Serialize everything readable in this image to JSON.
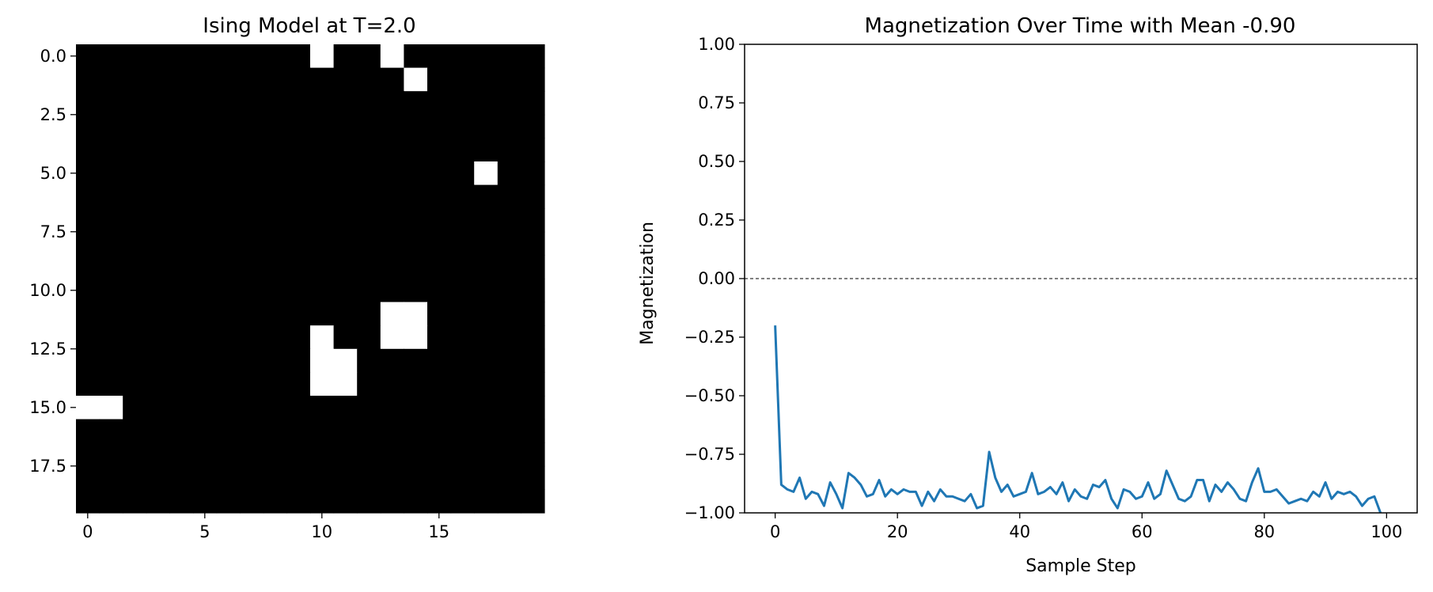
{
  "chart_data": [
    {
      "type": "heatmap",
      "title": "Ising Model at T=2.0",
      "grid_size": [
        20,
        20
      ],
      "colormap": "gray",
      "colors": {
        "spin_down": "#000000",
        "spin_up": "#ffffff"
      },
      "background_value": -1,
      "up_spins": [
        [
          0,
          10
        ],
        [
          0,
          13
        ],
        [
          1,
          14
        ],
        [
          5,
          17
        ],
        [
          11,
          13
        ],
        [
          11,
          14
        ],
        [
          12,
          10
        ],
        [
          12,
          13
        ],
        [
          12,
          14
        ],
        [
          13,
          10
        ],
        [
          13,
          11
        ],
        [
          14,
          10
        ],
        [
          14,
          11
        ],
        [
          15,
          0
        ],
        [
          15,
          1
        ]
      ],
      "xlim": [
        -0.5,
        19.5
      ],
      "ylim": [
        19.5,
        -0.5
      ],
      "x_ticks": [
        0,
        5,
        10,
        15
      ],
      "x_tick_labels": [
        "0",
        "5",
        "10",
        "15"
      ],
      "y_ticks": [
        0.0,
        2.5,
        5.0,
        7.5,
        10.0,
        12.5,
        15.0,
        17.5
      ],
      "y_tick_labels": [
        "0.0",
        "2.5",
        "5.0",
        "7.5",
        "10.0",
        "12.5",
        "15.0",
        "17.5"
      ]
    },
    {
      "type": "line",
      "title": "Magnetization Over Time with Mean -0.90",
      "xlabel": "Sample Step",
      "ylabel": "Magnetization",
      "xlim": [
        -5,
        105
      ],
      "ylim": [
        -1.0,
        1.0
      ],
      "x_ticks": [
        0,
        20,
        40,
        60,
        80,
        100
      ],
      "x_tick_labels": [
        "0",
        "20",
        "40",
        "60",
        "80",
        "100"
      ],
      "y_ticks": [
        1.0,
        0.75,
        0.5,
        0.25,
        0.0,
        -0.25,
        -0.5,
        -0.75,
        -1.0
      ],
      "y_tick_labels": [
        "1.00",
        "0.75",
        "0.50",
        "0.25",
        "0.00",
        "−0.25",
        "−0.50",
        "−0.75",
        "−1.00"
      ],
      "reference_line": {
        "y": 0.0,
        "style": "dashed",
        "color": "#000000"
      },
      "series": [
        {
          "color": "#1f77b4",
          "x": [
            0,
            1,
            2,
            3,
            4,
            5,
            6,
            7,
            8,
            9,
            10,
            11,
            12,
            13,
            14,
            15,
            16,
            17,
            18,
            19,
            20,
            21,
            22,
            23,
            24,
            25,
            26,
            27,
            28,
            29,
            30,
            31,
            32,
            33,
            34,
            35,
            36,
            37,
            38,
            39,
            40,
            41,
            42,
            43,
            44,
            45,
            46,
            47,
            48,
            49,
            50,
            51,
            52,
            53,
            54,
            55,
            56,
            57,
            58,
            59,
            60,
            61,
            62,
            63,
            64,
            65,
            66,
            67,
            68,
            69,
            70,
            71,
            72,
            73,
            74,
            75,
            76,
            77,
            78,
            79,
            80,
            81,
            82,
            83,
            84,
            85,
            86,
            87,
            88,
            89,
            90,
            91,
            92,
            93,
            94,
            95,
            96,
            97,
            98,
            99
          ],
          "values": [
            -0.2,
            -0.88,
            -0.9,
            -0.91,
            -0.85,
            -0.94,
            -0.91,
            -0.92,
            -0.97,
            -0.87,
            -0.92,
            -0.98,
            -0.83,
            -0.85,
            -0.88,
            -0.93,
            -0.92,
            -0.86,
            -0.93,
            -0.9,
            -0.92,
            -0.9,
            -0.91,
            -0.91,
            -0.97,
            -0.91,
            -0.95,
            -0.9,
            -0.93,
            -0.93,
            -0.94,
            -0.95,
            -0.92,
            -0.98,
            -0.97,
            -0.74,
            -0.85,
            -0.91,
            -0.88,
            -0.93,
            -0.92,
            -0.91,
            -0.83,
            -0.92,
            -0.91,
            -0.89,
            -0.92,
            -0.87,
            -0.95,
            -0.9,
            -0.93,
            -0.94,
            -0.88,
            -0.89,
            -0.86,
            -0.94,
            -0.98,
            -0.9,
            -0.91,
            -0.94,
            -0.93,
            -0.87,
            -0.94,
            -0.92,
            -0.82,
            -0.88,
            -0.94,
            -0.95,
            -0.93,
            -0.86,
            -0.86,
            -0.95,
            -0.88,
            -0.91,
            -0.87,
            -0.9,
            -0.94,
            -0.95,
            -0.87,
            -0.81,
            -0.91,
            -0.91,
            -0.9,
            -0.93,
            -0.96,
            -0.95,
            -0.94,
            -0.95,
            -0.91,
            -0.93,
            -0.87,
            -0.94,
            -0.91,
            -0.92,
            -0.91,
            -0.93,
            -0.97,
            -0.94,
            -0.93,
            -1.0
          ]
        }
      ]
    }
  ]
}
